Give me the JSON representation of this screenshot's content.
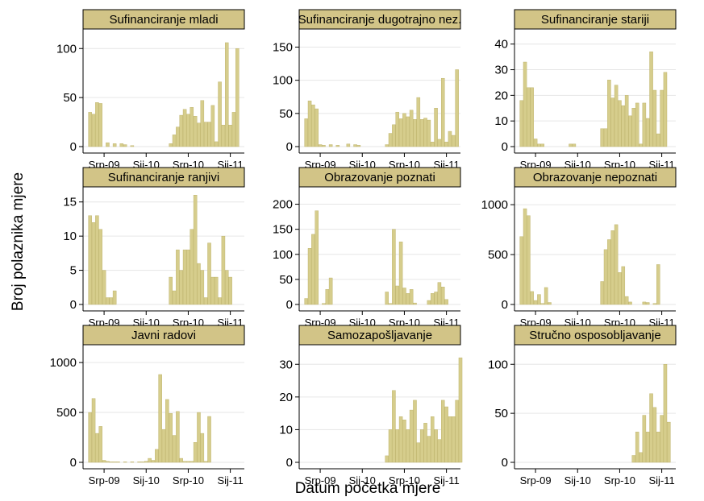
{
  "chart_data": {
    "type": "bar",
    "title": "",
    "xlabel": "Datum početka mjere",
    "ylabel": "Broj polaznika mjere",
    "colors": {
      "bar": "#d6cd8c",
      "bar_edge": "#b8ad63",
      "header": "#d2c487",
      "grid": "#e6e6e6"
    },
    "x_ticks": [
      "Srp-09",
      "Sij-10",
      "Srp-10",
      "Sij-11"
    ],
    "x_tick_months": [
      0,
      6,
      12,
      18
    ],
    "x_month_range": [
      -3,
      20
    ],
    "panels": [
      {
        "title": "Sufinanciranje mladi",
        "ylim": [
          0,
          115
        ],
        "yticks": [
          0,
          50,
          100
        ],
        "points": [
          [
            -2,
            35
          ],
          [
            -1.5,
            33
          ],
          [
            -1,
            45
          ],
          [
            -0.5,
            44
          ],
          [
            0.5,
            4
          ],
          [
            1.5,
            3
          ],
          [
            2.5,
            3
          ],
          [
            3,
            2
          ],
          [
            4,
            1
          ],
          [
            9.5,
            3
          ],
          [
            10,
            12
          ],
          [
            10.5,
            20
          ],
          [
            11,
            32
          ],
          [
            11.5,
            38
          ],
          [
            12,
            33
          ],
          [
            12.5,
            40
          ],
          [
            13,
            31
          ],
          [
            13.5,
            24
          ],
          [
            14,
            47
          ],
          [
            14.5,
            25
          ],
          [
            15,
            25
          ],
          [
            15.5,
            42
          ],
          [
            16,
            5
          ],
          [
            16.5,
            66
          ],
          [
            17,
            22
          ],
          [
            17.5,
            106
          ],
          [
            18,
            22
          ],
          [
            18.5,
            35
          ],
          [
            19,
            100
          ]
        ]
      },
      {
        "title": "Sufinanciranje dugotrajno nez.",
        "ylim": [
          0,
          170
        ],
        "yticks": [
          0,
          50,
          100,
          150
        ],
        "points": [
          [
            -2,
            42
          ],
          [
            -1.5,
            69
          ],
          [
            -1,
            63
          ],
          [
            -0.5,
            57
          ],
          [
            0,
            3
          ],
          [
            0.5,
            2
          ],
          [
            1.5,
            3
          ],
          [
            2.5,
            2
          ],
          [
            4,
            4
          ],
          [
            5,
            3
          ],
          [
            5.5,
            2
          ],
          [
            9.5,
            3
          ],
          [
            10,
            20
          ],
          [
            10.5,
            33
          ],
          [
            11,
            52
          ],
          [
            11.5,
            42
          ],
          [
            12,
            50
          ],
          [
            12.5,
            45
          ],
          [
            13,
            55
          ],
          [
            13.5,
            41
          ],
          [
            14,
            74
          ],
          [
            14.5,
            41
          ],
          [
            15,
            43
          ],
          [
            15.5,
            40
          ],
          [
            16,
            7
          ],
          [
            16.5,
            58
          ],
          [
            17,
            11
          ],
          [
            17.5,
            103
          ],
          [
            18,
            7
          ],
          [
            18.5,
            23
          ],
          [
            19,
            17
          ],
          [
            19.5,
            116
          ]
        ]
      },
      {
        "title": "Sufinanciranje stariji",
        "ylim": [
          0,
          44
        ],
        "yticks": [
          0,
          10,
          20,
          30,
          40
        ],
        "points": [
          [
            -2,
            18
          ],
          [
            -1.5,
            33
          ],
          [
            -1,
            23
          ],
          [
            -0.5,
            23
          ],
          [
            0,
            3
          ],
          [
            0.5,
            1
          ],
          [
            1,
            1
          ],
          [
            5,
            1
          ],
          [
            5.5,
            1
          ],
          [
            9.5,
            7
          ],
          [
            10,
            7
          ],
          [
            10.5,
            26
          ],
          [
            11,
            19
          ],
          [
            11.5,
            24
          ],
          [
            12,
            18
          ],
          [
            12.5,
            16
          ],
          [
            13,
            20
          ],
          [
            13.5,
            12
          ],
          [
            14,
            15
          ],
          [
            14.5,
            17
          ],
          [
            15,
            1
          ],
          [
            15.5,
            17
          ],
          [
            16,
            11
          ],
          [
            16.5,
            37
          ],
          [
            17,
            22
          ],
          [
            17.5,
            5
          ],
          [
            18,
            22
          ],
          [
            18.5,
            29
          ]
        ]
      },
      {
        "title": "Sufinanciranje ranjivi",
        "ylim": [
          0,
          16.5
        ],
        "yticks": [
          0,
          5,
          10,
          15
        ],
        "points": [
          [
            -2,
            13
          ],
          [
            -1.5,
            12
          ],
          [
            -1,
            13
          ],
          [
            -0.5,
            11
          ],
          [
            0,
            5
          ],
          [
            0.5,
            1
          ],
          [
            1,
            1
          ],
          [
            1.5,
            2
          ],
          [
            9.5,
            4
          ],
          [
            10,
            2
          ],
          [
            10.5,
            8
          ],
          [
            11,
            5
          ],
          [
            11.5,
            8
          ],
          [
            12,
            8
          ],
          [
            12.5,
            11
          ],
          [
            13,
            16
          ],
          [
            13.5,
            6
          ],
          [
            14,
            5
          ],
          [
            14.5,
            1
          ],
          [
            15,
            9
          ],
          [
            15.5,
            4
          ],
          [
            16,
            4
          ],
          [
            16.5,
            1
          ],
          [
            17,
            10
          ],
          [
            17.5,
            5
          ],
          [
            18,
            4
          ]
        ]
      },
      {
        "title": "Obrazovanje poznati",
        "ylim": [
          0,
          225
        ],
        "yticks": [
          0,
          50,
          100,
          150,
          200
        ],
        "points": [
          [
            -2,
            12
          ],
          [
            -1.5,
            112
          ],
          [
            -1,
            140
          ],
          [
            -0.5,
            187
          ],
          [
            0.5,
            2
          ],
          [
            1,
            30
          ],
          [
            1.5,
            53
          ],
          [
            9.5,
            25
          ],
          [
            10,
            2
          ],
          [
            10.5,
            150
          ],
          [
            11,
            37
          ],
          [
            11.5,
            125
          ],
          [
            12,
            33
          ],
          [
            12.5,
            22
          ],
          [
            13,
            30
          ],
          [
            13.5,
            3
          ],
          [
            15.5,
            8
          ],
          [
            16,
            22
          ],
          [
            16.5,
            25
          ],
          [
            17,
            44
          ],
          [
            17.5,
            35
          ],
          [
            18,
            10
          ]
        ]
      },
      {
        "title": "Obrazovanje nepoznati",
        "ylim": [
          0,
          1130
        ],
        "yticks": [
          0,
          500,
          1000
        ],
        "points": [
          [
            -2,
            680
          ],
          [
            -1.5,
            960
          ],
          [
            -1,
            890
          ],
          [
            -0.5,
            130
          ],
          [
            0,
            40
          ],
          [
            0.5,
            100
          ],
          [
            1,
            10
          ],
          [
            1.5,
            170
          ],
          [
            2,
            20
          ],
          [
            9.5,
            230
          ],
          [
            10,
            550
          ],
          [
            10.5,
            650
          ],
          [
            11,
            740
          ],
          [
            11.5,
            800
          ],
          [
            12,
            320
          ],
          [
            12.5,
            380
          ],
          [
            13,
            80
          ],
          [
            13.5,
            25
          ],
          [
            15.5,
            25
          ],
          [
            16,
            20
          ],
          [
            17,
            10
          ],
          [
            17.5,
            400
          ]
        ]
      },
      {
        "title": "Javni radovi",
        "ylim": [
          0,
          1130
        ],
        "yticks": [
          0,
          500,
          1000
        ],
        "points": [
          [
            -2,
            500
          ],
          [
            -1.5,
            640
          ],
          [
            -1,
            290
          ],
          [
            -0.5,
            360
          ],
          [
            0,
            20
          ],
          [
            0.5,
            10
          ],
          [
            1,
            5
          ],
          [
            1.5,
            5
          ],
          [
            2,
            5
          ],
          [
            3,
            5
          ],
          [
            4,
            5
          ],
          [
            5,
            5
          ],
          [
            5.5,
            5
          ],
          [
            6,
            10
          ],
          [
            6.5,
            40
          ],
          [
            7,
            20
          ],
          [
            7.5,
            130
          ],
          [
            8,
            880
          ],
          [
            8.5,
            330
          ],
          [
            9,
            630
          ],
          [
            9.5,
            490
          ],
          [
            10,
            270
          ],
          [
            10.5,
            510
          ],
          [
            11,
            40
          ],
          [
            11.5,
            10
          ],
          [
            12,
            10
          ],
          [
            12.5,
            10
          ],
          [
            13,
            200
          ],
          [
            13.5,
            500
          ],
          [
            14,
            290
          ],
          [
            14.5,
            10
          ],
          [
            15,
            460
          ]
        ]
      },
      {
        "title": "Samozapošljavanje",
        "ylim": [
          0,
          34.5
        ],
        "yticks": [
          0,
          10,
          20,
          30
        ],
        "points": [
          [
            9.5,
            2
          ],
          [
            10,
            10
          ],
          [
            10.5,
            22
          ],
          [
            11,
            10
          ],
          [
            11.5,
            14
          ],
          [
            12,
            13
          ],
          [
            12.5,
            10
          ],
          [
            13,
            16
          ],
          [
            13.5,
            19
          ],
          [
            14,
            6
          ],
          [
            14.5,
            10
          ],
          [
            15,
            12
          ],
          [
            15.5,
            8
          ],
          [
            16,
            14
          ],
          [
            16.5,
            10
          ],
          [
            17,
            7
          ],
          [
            17.5,
            19
          ],
          [
            18,
            17
          ],
          [
            18.5,
            14
          ],
          [
            19,
            14
          ],
          [
            19.5,
            19
          ],
          [
            20,
            32
          ]
        ]
      },
      {
        "title": "Stručno osposobljavanje",
        "ylim": [
          0,
          115
        ],
        "yticks": [
          0,
          50,
          100
        ],
        "points": [
          [
            14,
            7
          ],
          [
            14.5,
            31
          ],
          [
            15,
            10
          ],
          [
            15.5,
            48
          ],
          [
            16,
            31
          ],
          [
            16.5,
            70
          ],
          [
            17,
            56
          ],
          [
            17.5,
            31
          ],
          [
            18,
            48
          ],
          [
            18.5,
            100
          ],
          [
            19,
            41
          ]
        ]
      }
    ]
  }
}
